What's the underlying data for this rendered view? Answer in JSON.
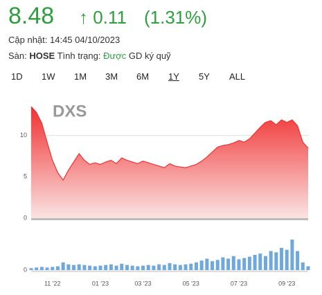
{
  "header": {
    "price": "8.48",
    "change": "↑ 0.11",
    "change_pct": "(1.31%)",
    "updated_label": "Cập nhật:",
    "updated": "14:45 04/10/2023",
    "exchange_label": "Sàn:",
    "exchange": "HOSE",
    "status_label": "Tình trạng:",
    "status": "Được",
    "status_note": "GD ký quỹ",
    "ranges": [
      "1D",
      "1W",
      "1M",
      "3M",
      "6M",
      "1Y",
      "5Y",
      "ALL"
    ],
    "active_range": "1Y"
  },
  "chart_data": [
    {
      "type": "area",
      "title": "DXS",
      "color": "#f03030",
      "values": [
        13.5,
        12.8,
        11.5,
        9.2,
        7.0,
        5.5,
        4.6,
        5.8,
        6.8,
        7.8,
        7.0,
        6.5,
        6.7,
        6.5,
        6.8,
        7.0,
        6.6,
        7.3,
        7.0,
        6.8,
        6.6,
        6.9,
        6.7,
        6.5,
        6.3,
        6.1,
        6.6,
        6.3,
        6.2,
        6.1,
        6.3,
        6.5,
        6.9,
        7.4,
        8.0,
        8.6,
        8.8,
        8.9,
        9.1,
        9.4,
        9.2,
        9.6,
        10.3,
        11.0,
        11.6,
        11.8,
        11.3,
        11.9,
        11.6,
        11.9,
        11.2,
        9.2,
        8.48
      ],
      "ylim": [
        0,
        14
      ],
      "yticks": [
        0,
        5,
        10
      ],
      "grid": true
    },
    {
      "type": "bar",
      "color": "#6fa8dc",
      "categories": [
        null,
        null,
        null,
        null,
        "11 '22",
        null,
        null,
        null,
        null,
        null,
        null,
        null,
        null,
        "01 '23",
        null,
        null,
        null,
        null,
        null,
        null,
        null,
        "03 '23",
        null,
        null,
        null,
        null,
        null,
        null,
        null,
        null,
        "05 '23",
        null,
        null,
        null,
        null,
        null,
        null,
        null,
        null,
        "07 '23",
        null,
        null,
        null,
        null,
        null,
        null,
        null,
        null,
        "09 '23",
        null,
        null,
        null,
        null
      ],
      "values": [
        3,
        4,
        5,
        4,
        5,
        6,
        12,
        9,
        8,
        9,
        8,
        7,
        6,
        7,
        8,
        9,
        7,
        10,
        8,
        7,
        6,
        7,
        8,
        7,
        9,
        8,
        11,
        9,
        8,
        9,
        10,
        12,
        15,
        18,
        14,
        16,
        20,
        18,
        22,
        17,
        19,
        21,
        24,
        26,
        22,
        30,
        28,
        35,
        32,
        48,
        30,
        12,
        6
      ],
      "ylim": [
        0,
        60
      ],
      "yticks": [
        0
      ],
      "grid": true
    }
  ]
}
